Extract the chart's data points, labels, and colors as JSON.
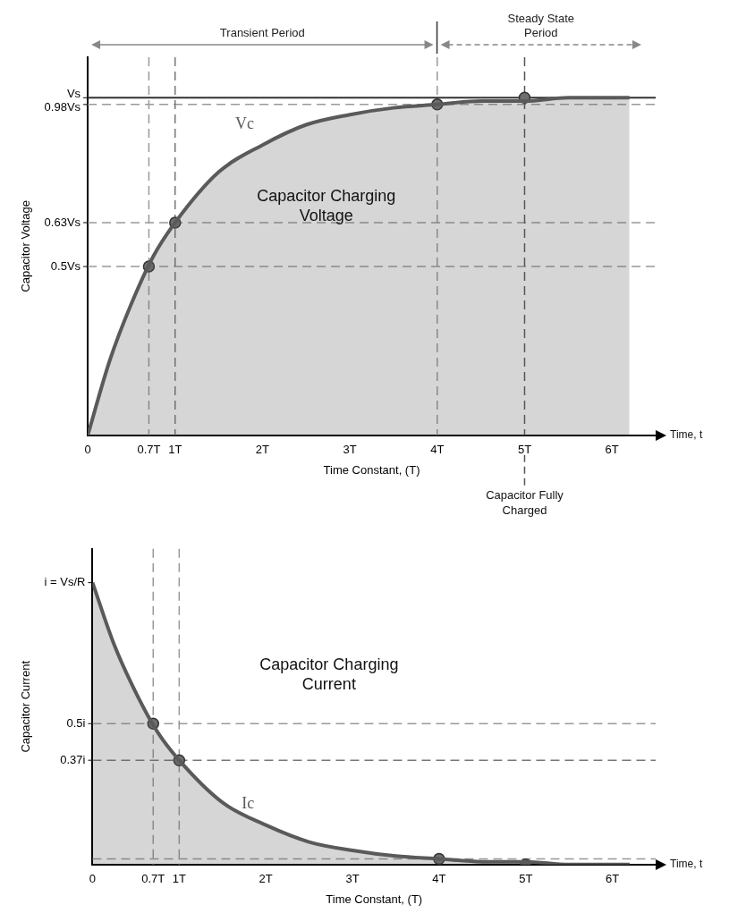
{
  "chart_data": [
    {
      "type": "area",
      "xlabel": "Time Constant, (T)",
      "ylabel": "Capacitor Voltage",
      "x": [
        0,
        0.25,
        0.5,
        0.75,
        1,
        1.5,
        2,
        2.5,
        3,
        3.5,
        4,
        4.5,
        5,
        5.5,
        6,
        6.2
      ],
      "series": [
        {
          "name": "Vc",
          "color": "#5a5a5a",
          "values": [
            0,
            0.22,
            0.39,
            0.53,
            0.63,
            0.78,
            0.86,
            0.92,
            0.95,
            0.97,
            0.98,
            0.99,
            0.99,
            1,
            1,
            1
          ]
        },
        {
          "type": "scatter",
          "color": "#6e6e6e",
          "marker": "circle",
          "x": [
            0.7,
            1,
            4,
            5
          ],
          "values": [
            0.5,
            0.63,
            0.98,
            1
          ]
        }
      ],
      "xlim": [
        0,
        6.5
      ],
      "ylim": [
        0,
        1.12
      ],
      "xticks": [
        0,
        {
          "value": 0.7,
          "label": "0.7T"
        },
        {
          "value": 1,
          "label": "1T"
        },
        {
          "value": 2,
          "label": "2T"
        },
        {
          "value": 3,
          "label": "3T"
        },
        {
          "value": 4,
          "label": "4T"
        },
        {
          "value": 5,
          "label": "5T"
        },
        {
          "value": 6,
          "label": "6T"
        }
      ],
      "yticks": [
        {
          "value": 0.5,
          "label": "0.5Vs"
        },
        {
          "value": 0.63,
          "label": "0.63Vs"
        },
        {
          "value": 0.98,
          "label": "0.98Vs"
        },
        {
          "value": 1,
          "label": "Vs"
        }
      ],
      "ref_lines": [
        {
          "axis": "y",
          "value": 1,
          "line_style": "solid",
          "color": "#333333"
        },
        {
          "axis": "y",
          "value": 0.98,
          "line_style": "dashed",
          "color": "#999999"
        },
        {
          "axis": "y",
          "value": 0.63,
          "line_style": "dashed",
          "color": "#999999"
        },
        {
          "axis": "y",
          "value": 0.5,
          "line_style": "dashed",
          "color": "#999999"
        },
        {
          "axis": "x",
          "value": 0.7,
          "line_style": "dashed",
          "color": "#999999"
        },
        {
          "axis": "x",
          "value": 1,
          "line_style": "dashed",
          "color": "#777777"
        },
        {
          "axis": "x",
          "value": 4,
          "line_style": "dashed",
          "color": "#999999"
        },
        {
          "axis": "x",
          "value": 5,
          "line_style": "dashed",
          "color": "#555555"
        }
      ],
      "annotations": [
        "Capacitor Charging Voltage",
        "Time, t",
        {
          "text": "Capacitor Fully Charged",
          "x": 5
        },
        "Transient Period",
        "Steady State Period"
      ],
      "grid": false,
      "legend": false
    },
    {
      "type": "area",
      "xlabel": "Time Constant, (T)",
      "ylabel": "Capacitor Current",
      "x": [
        0,
        0.25,
        0.5,
        0.75,
        1,
        1.5,
        2,
        2.5,
        3,
        3.5,
        4,
        4.5,
        5,
        5.5,
        6,
        6.2
      ],
      "series": [
        {
          "name": "Ic",
          "color": "#5a5a5a",
          "values": [
            1,
            0.78,
            0.61,
            0.47,
            0.37,
            0.22,
            0.14,
            0.08,
            0.05,
            0.03,
            0.02,
            0.01,
            0.01,
            0,
            0,
            0
          ]
        },
        {
          "type": "scatter",
          "color": "#6e6e6e",
          "marker": "circle",
          "x": [
            0.7,
            1,
            4,
            5
          ],
          "values": [
            0.5,
            0.37,
            0.02,
            0
          ]
        }
      ],
      "xlim": [
        0,
        6.5
      ],
      "ylim": [
        0,
        1.12
      ],
      "xticks": [
        0,
        {
          "value": 0.7,
          "label": "0.7T"
        },
        {
          "value": 1,
          "label": "1T"
        },
        {
          "value": 2,
          "label": "2T"
        },
        {
          "value": 3,
          "label": "3T"
        },
        {
          "value": 4,
          "label": "4T"
        },
        {
          "value": 5,
          "label": "5T"
        },
        {
          "value": 6,
          "label": "6T"
        }
      ],
      "yticks": [
        {
          "value": 0.37,
          "label": "0.37i"
        },
        {
          "value": 0.5,
          "label": "0.5i"
        },
        {
          "value": 1,
          "label": "i = Vs/R"
        }
      ],
      "ref_lines": [
        {
          "axis": "y",
          "value": 0.5,
          "line_style": "dashed",
          "color": "#999999"
        },
        {
          "axis": "y",
          "value": 0.37,
          "line_style": "dashed",
          "color": "#777777"
        },
        {
          "axis": "y",
          "value": 0.02,
          "line_style": "dashed",
          "color": "#999999"
        },
        {
          "axis": "x",
          "value": 0.7,
          "line_style": "dashed",
          "color": "#999999"
        },
        {
          "axis": "x",
          "value": 1,
          "line_style": "dashed",
          "color": "#999999"
        }
      ],
      "annotations": [
        "Capacitor Charging Current",
        "Time, t"
      ],
      "grid": false,
      "legend": false
    }
  ]
}
